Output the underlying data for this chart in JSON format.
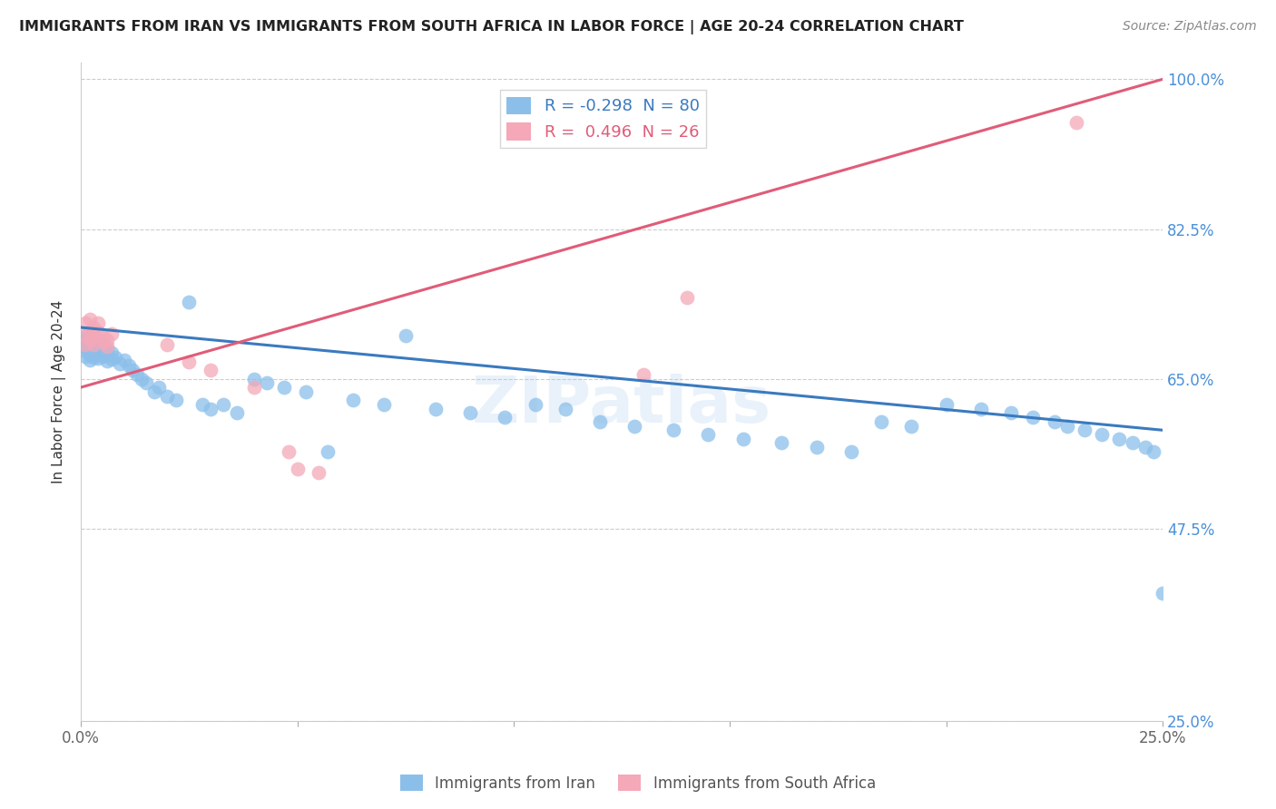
{
  "title": "IMMIGRANTS FROM IRAN VS IMMIGRANTS FROM SOUTH AFRICA IN LABOR FORCE | AGE 20-24 CORRELATION CHART",
  "source": "Source: ZipAtlas.com",
  "ylabel": "In Labor Force | Age 20-24",
  "xlim": [
    0.0,
    0.25
  ],
  "ylim": [
    0.25,
    1.02
  ],
  "right_yticks": [
    1.0,
    0.825,
    0.65,
    0.475,
    0.25
  ],
  "right_yticklabels": [
    "100.0%",
    "82.5%",
    "65.0%",
    "47.5%",
    "25.0%"
  ],
  "xticks": [
    0.0,
    0.05,
    0.1,
    0.15,
    0.2,
    0.25
  ],
  "xticklabels": [
    "0.0%",
    "",
    "",
    "",
    "",
    "25.0%"
  ],
  "iran_R": -0.298,
  "iran_N": 80,
  "sa_R": 0.496,
  "sa_N": 26,
  "iran_color": "#8bbfea",
  "sa_color": "#f4a8b8",
  "iran_line_color": "#3a7abf",
  "sa_line_color": "#e05c78",
  "legend_label_iran": "Immigrants from Iran",
  "legend_label_sa": "Immigrants from South Africa",
  "watermark": "ZIPatlas",
  "iran_x": [
    0.001,
    0.001,
    0.001,
    0.001,
    0.001,
    0.002,
    0.002,
    0.002,
    0.002,
    0.002,
    0.003,
    0.003,
    0.003,
    0.003,
    0.003,
    0.004,
    0.004,
    0.004,
    0.004,
    0.005,
    0.005,
    0.005,
    0.006,
    0.006,
    0.006,
    0.007,
    0.007,
    0.008,
    0.009,
    0.01,
    0.011,
    0.012,
    0.013,
    0.014,
    0.015,
    0.017,
    0.018,
    0.02,
    0.022,
    0.025,
    0.028,
    0.03,
    0.033,
    0.036,
    0.04,
    0.043,
    0.047,
    0.052,
    0.057,
    0.063,
    0.07,
    0.075,
    0.082,
    0.09,
    0.098,
    0.105,
    0.112,
    0.12,
    0.128,
    0.137,
    0.145,
    0.153,
    0.162,
    0.17,
    0.178,
    0.185,
    0.192,
    0.2,
    0.208,
    0.215,
    0.22,
    0.225,
    0.228,
    0.232,
    0.236,
    0.24,
    0.243,
    0.246,
    0.248,
    0.25
  ],
  "iran_y": [
    0.7,
    0.695,
    0.688,
    0.682,
    0.676,
    0.698,
    0.692,
    0.686,
    0.678,
    0.672,
    0.705,
    0.698,
    0.691,
    0.683,
    0.675,
    0.695,
    0.688,
    0.681,
    0.674,
    0.69,
    0.683,
    0.676,
    0.685,
    0.678,
    0.671,
    0.68,
    0.673,
    0.675,
    0.668,
    0.672,
    0.665,
    0.66,
    0.655,
    0.65,
    0.645,
    0.635,
    0.64,
    0.63,
    0.625,
    0.74,
    0.62,
    0.615,
    0.62,
    0.61,
    0.65,
    0.645,
    0.64,
    0.635,
    0.565,
    0.625,
    0.62,
    0.7,
    0.615,
    0.61,
    0.605,
    0.62,
    0.615,
    0.6,
    0.595,
    0.59,
    0.585,
    0.58,
    0.575,
    0.57,
    0.565,
    0.6,
    0.595,
    0.62,
    0.615,
    0.61,
    0.605,
    0.6,
    0.595,
    0.59,
    0.585,
    0.58,
    0.575,
    0.57,
    0.565,
    0.4
  ],
  "sa_x": [
    0.001,
    0.001,
    0.001,
    0.002,
    0.002,
    0.002,
    0.003,
    0.003,
    0.003,
    0.004,
    0.004,
    0.005,
    0.005,
    0.006,
    0.006,
    0.007,
    0.02,
    0.025,
    0.03,
    0.04,
    0.048,
    0.05,
    0.055,
    0.13,
    0.14,
    0.23
  ],
  "sa_y": [
    0.715,
    0.7,
    0.69,
    0.72,
    0.705,
    0.695,
    0.71,
    0.7,
    0.69,
    0.715,
    0.705,
    0.7,
    0.693,
    0.695,
    0.688,
    0.703,
    0.69,
    0.67,
    0.66,
    0.64,
    0.565,
    0.545,
    0.54,
    0.655,
    0.745,
    0.95
  ],
  "iran_trend_x": [
    0.0,
    0.25
  ],
  "iran_trend_y": [
    0.71,
    0.59
  ],
  "sa_trend_x": [
    0.0,
    0.25
  ],
  "sa_trend_y": [
    0.64,
    1.0
  ],
  "grid_color": "#cccccc",
  "background_color": "#ffffff"
}
